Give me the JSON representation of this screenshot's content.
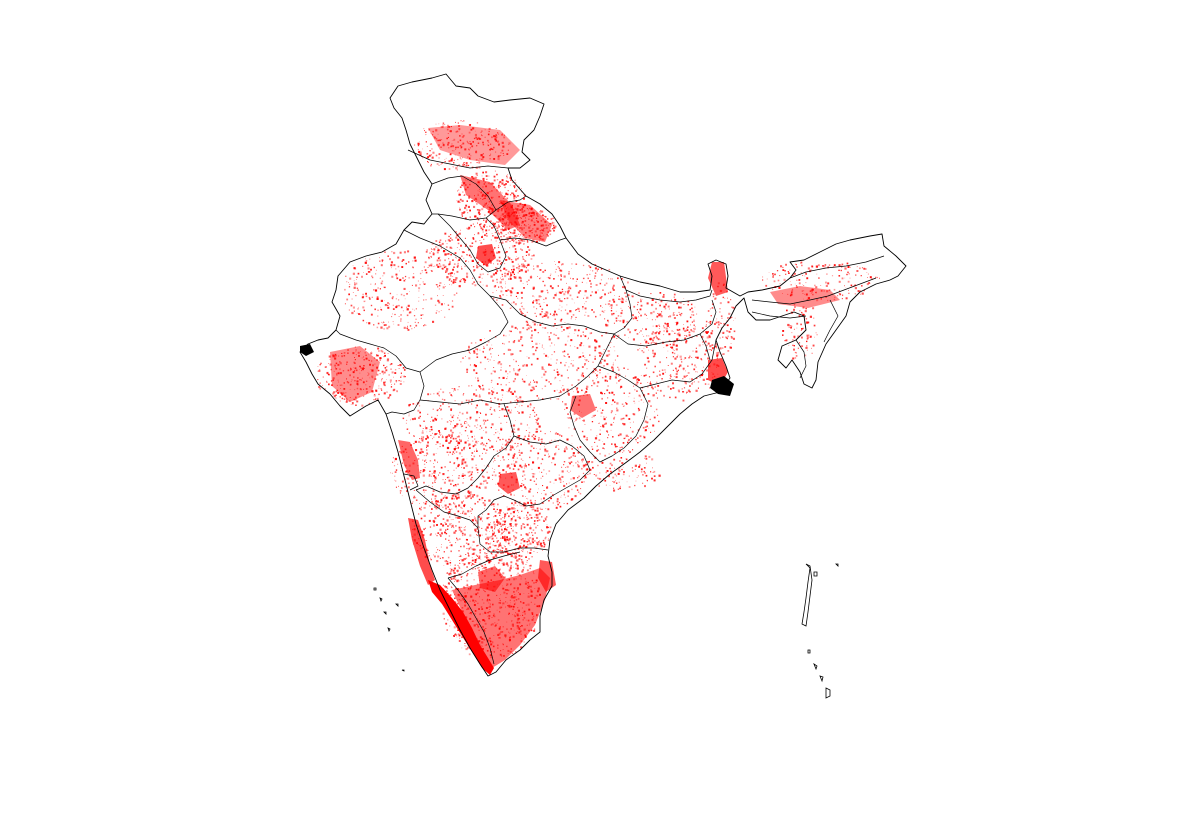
{
  "map": {
    "boundary_color": "#000000",
    "point_color": "#ff0000",
    "background_color": "#ffffff"
  }
}
